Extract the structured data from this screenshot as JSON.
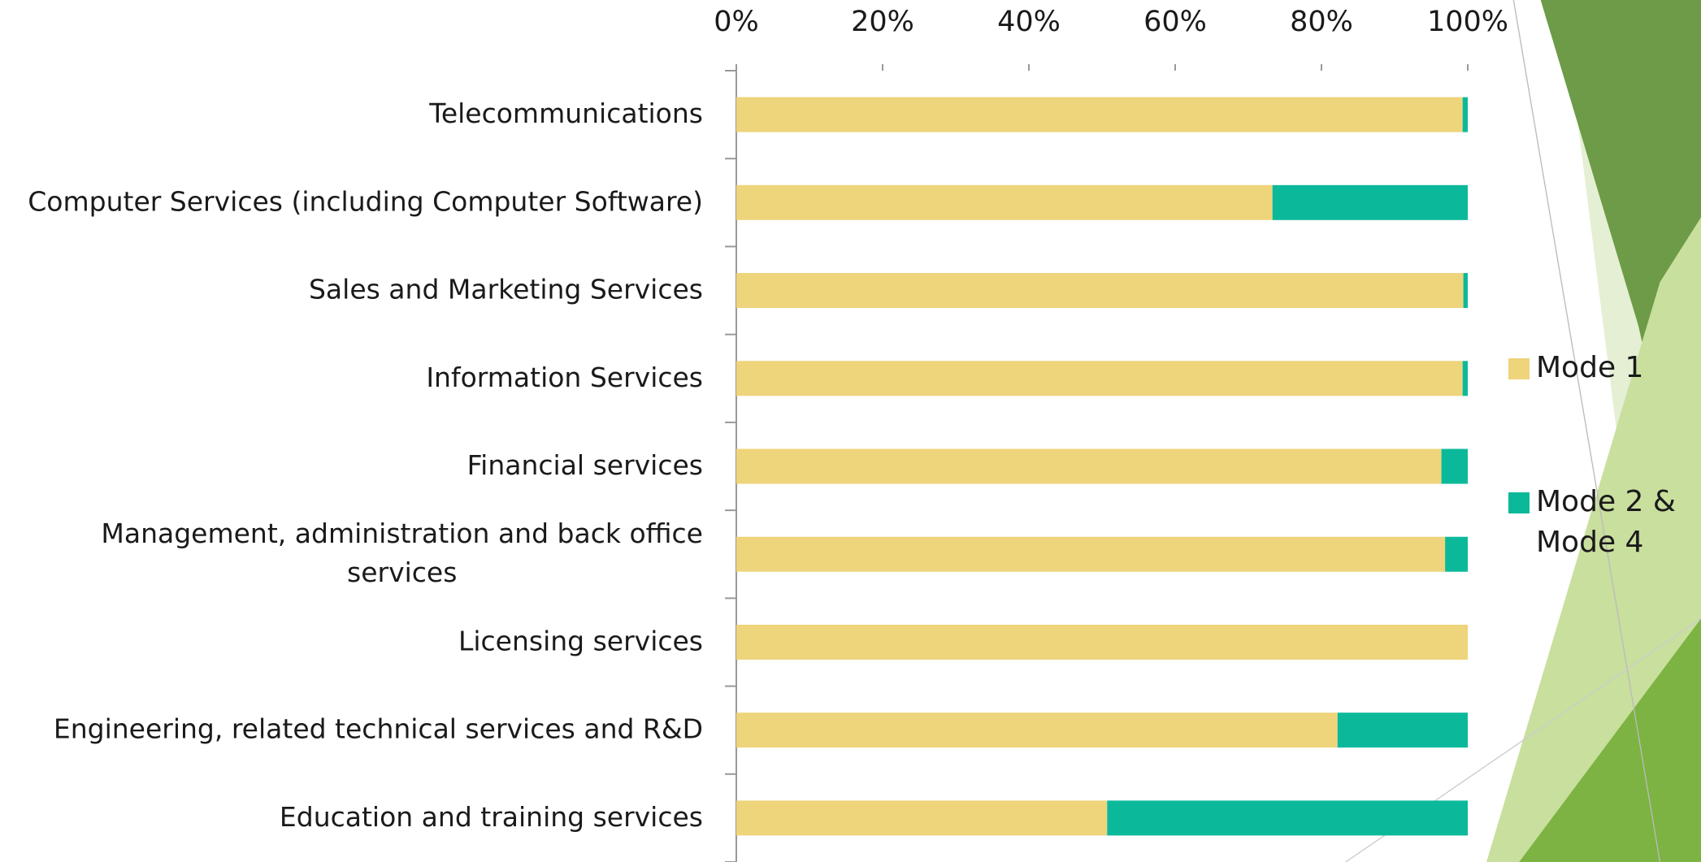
{
  "chart_data": {
    "type": "stacked-bar-horizontal",
    "categories": [
      "Telecommunications",
      "Computer Services (including Computer Software)",
      "Sales and Marketing Services",
      "Information Services",
      "Financial services",
      "Management, administration and back office services",
      "Licensing services",
      "Engineering, related technical services and R&D",
      "Education and training services"
    ],
    "series": [
      {
        "name": "Mode 1",
        "color": "#eed47a",
        "values": [
          99.3,
          73.3,
          99.4,
          99.3,
          96.4,
          96.9,
          100,
          82.2,
          50.7
        ]
      },
      {
        "name": "Mode 2 & Mode 4",
        "color": "#0bb99a",
        "values": [
          0.7,
          26.7,
          0.6,
          0.7,
          3.6,
          3.1,
          0,
          17.8,
          49.3
        ]
      }
    ],
    "xlim": [
      0,
      100
    ],
    "xticks": [
      {
        "value": 0,
        "label": "0%"
      },
      {
        "value": 20,
        "label": "20%"
      },
      {
        "value": 40,
        "label": "40%"
      },
      {
        "value": 60,
        "label": "60%"
      },
      {
        "value": 80,
        "label": "80%"
      },
      {
        "value": 100,
        "label": "100%"
      }
    ],
    "legend": "right"
  }
}
